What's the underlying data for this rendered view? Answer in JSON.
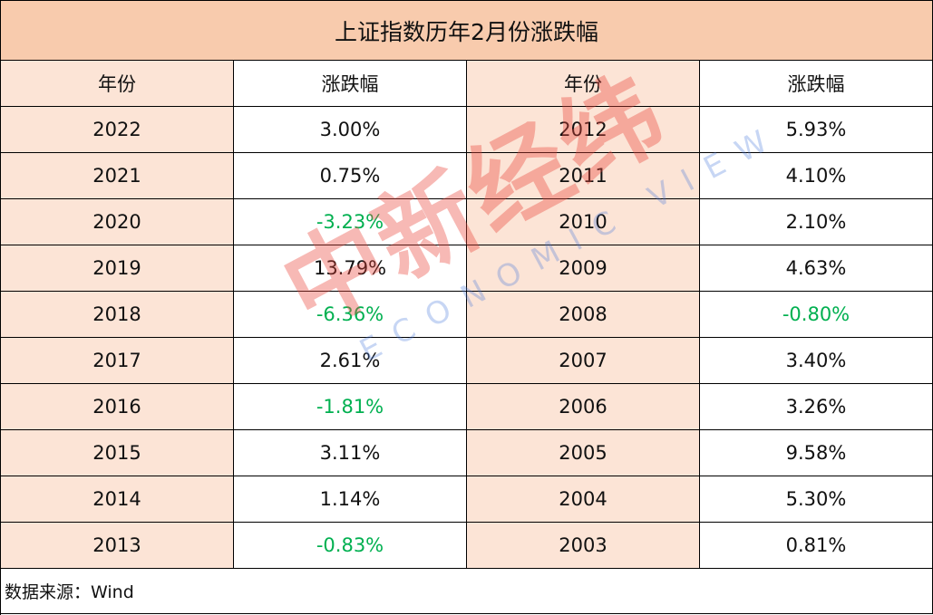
{
  "title": "上证指数历年2月份涨跌幅",
  "table": {
    "headers": [
      "年份",
      "涨跌幅",
      "年份",
      "涨跌幅"
    ],
    "rows": [
      [
        "2022",
        "3.00%",
        "2012",
        "5.93%"
      ],
      [
        "2021",
        "0.75%",
        "2011",
        "4.10%"
      ],
      [
        "2020",
        "-3.23%",
        "2010",
        "2.10%"
      ],
      [
        "2019",
        "13.79%",
        "2009",
        "4.63%"
      ],
      [
        "2018",
        "-6.36%",
        "2008",
        "-0.80%"
      ],
      [
        "2017",
        "2.61%",
        "2007",
        "3.40%"
      ],
      [
        "2016",
        "-1.81%",
        "2006",
        "3.26%"
      ],
      [
        "2015",
        "3.11%",
        "2005",
        "9.58%"
      ],
      [
        "2014",
        "1.14%",
        "2004",
        "5.30%"
      ],
      [
        "2013",
        "-0.83%",
        "2003",
        "0.81%"
      ]
    ]
  },
  "source": "数据来源：Wind",
  "watermark": {
    "name": "中新经纬",
    "subtitle": "ECONOMIC VIEW"
  }
}
